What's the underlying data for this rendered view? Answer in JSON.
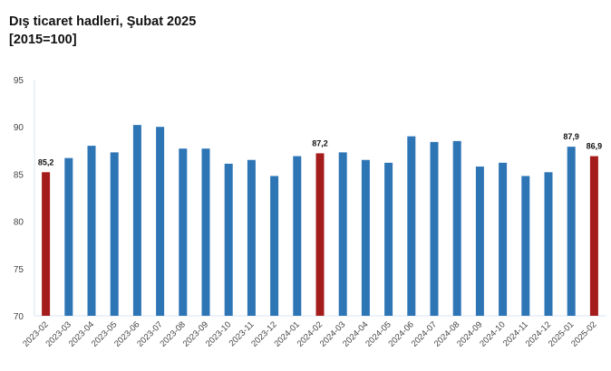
{
  "chart_data": {
    "type": "bar",
    "title": "Dış ticaret hadleri, Şubat 2025",
    "subtitle": "[2015=100]",
    "xlabel": "",
    "ylabel": "",
    "ylim": [
      70,
      95
    ],
    "yticks": [
      70,
      75,
      80,
      85,
      90,
      95
    ],
    "grid": false,
    "colors": {
      "default": "#2e75b6",
      "highlight": "#a51c1c"
    },
    "categories": [
      "2023-02",
      "2023-03",
      "2023-04",
      "2023-05",
      "2023-06",
      "2023-07",
      "2023-08",
      "2023-09",
      "2023-10",
      "2023-11",
      "2023-12",
      "2024-01",
      "2024-02",
      "2024-03",
      "2024-04",
      "2024-05",
      "2024-06",
      "2024-07",
      "2024-08",
      "2024-09",
      "2024-10",
      "2024-11",
      "2024-12",
      "2025-01",
      "2025-02"
    ],
    "values": [
      85.2,
      86.7,
      88.0,
      87.3,
      90.2,
      90.0,
      87.7,
      87.7,
      86.1,
      86.5,
      84.8,
      86.9,
      87.2,
      87.3,
      86.5,
      86.2,
      89.0,
      88.4,
      88.5,
      85.8,
      86.2,
      84.8,
      85.2,
      87.9,
      86.9
    ],
    "highlighted": [
      "2023-02",
      "2024-02",
      "2025-02"
    ],
    "data_labels": [
      {
        "category": "2023-02",
        "text": "85,2"
      },
      {
        "category": "2024-02",
        "text": "87,2"
      },
      {
        "category": "2025-01",
        "text": "87,9"
      },
      {
        "category": "2025-02",
        "text": "86,9"
      }
    ]
  }
}
